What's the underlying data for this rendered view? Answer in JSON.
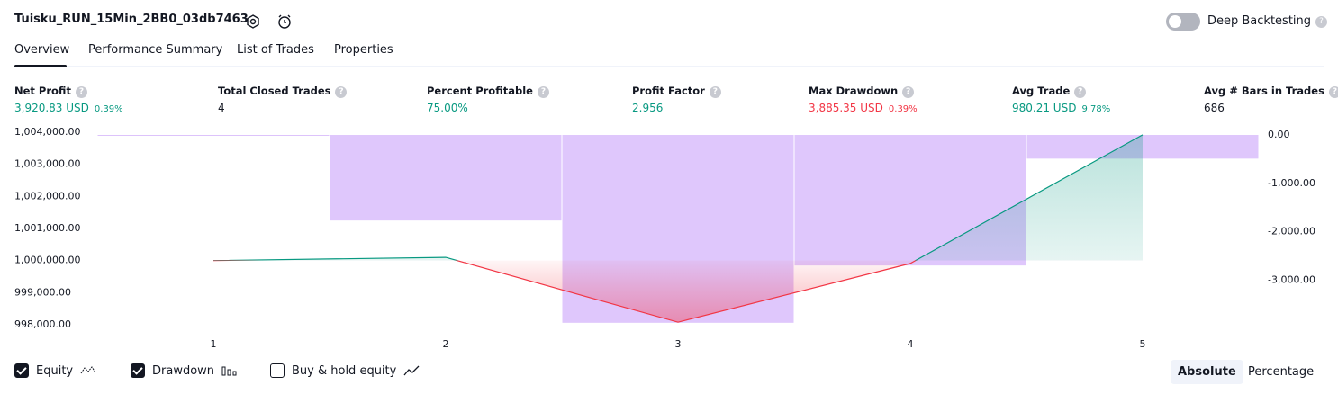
{
  "header": {
    "strategy_name": "Tuisku_RUN_15Min_2BB0_03db7463",
    "deep_backtesting": "Deep Backtesting"
  },
  "tabs": [
    "Overview",
    "Performance Summary",
    "List of Trades",
    "Properties"
  ],
  "stats": [
    {
      "label": "Net Profit",
      "value": "3,920.83 USD",
      "percent": "0.39%"
    },
    {
      "label": "Total Closed Trades",
      "value": "4"
    },
    {
      "label": "Percent Profitable",
      "value": "75.00%"
    },
    {
      "label": "Profit Factor",
      "value": "2.956"
    },
    {
      "label": "Max Drawdown",
      "value": "3,885.35 USD",
      "percent": "0.39%"
    },
    {
      "label": "Avg Trade",
      "value": "980.21 USD",
      "percent": "9.78%"
    },
    {
      "label": "Avg # Bars in Trades",
      "value": "686"
    }
  ],
  "chart_data": {
    "type": "line",
    "categories": [
      "1",
      "2",
      "3",
      "4",
      "5"
    ],
    "series": [
      {
        "name": "Equity",
        "color": "#089981",
        "negative_color": "#f23645",
        "values": [
          1000000,
          1000100,
          998080,
          999910,
          1003920
        ]
      },
      {
        "name": "Drawdown",
        "type": "bar",
        "axis": "y2",
        "color": "#d9bdfb",
        "values": [
          0,
          -1770,
          -3885.35,
          -2700,
          -490
        ]
      }
    ],
    "ylim": [
      998000,
      1004000
    ],
    "yticks": [
      {
        "value": 1004000,
        "label": "1,004,000.00"
      },
      {
        "value": 1003000,
        "label": "1,003,000.00"
      },
      {
        "value": 1002000,
        "label": "1,002,000.00"
      },
      {
        "value": 1001000,
        "label": "1,001,000.00"
      },
      {
        "value": 1000000,
        "label": "1,000,000.00"
      },
      {
        "value": 999000,
        "label": "999,000.00"
      },
      {
        "value": 998000,
        "label": "998,000.00"
      }
    ],
    "y2lim": [
      -4000,
      0
    ],
    "y2ticks": [
      {
        "value": 0,
        "label": "0.00"
      },
      {
        "value": -1000,
        "label": "-1,000.00"
      },
      {
        "value": -2000,
        "label": "-2,000.00"
      },
      {
        "value": -3000,
        "label": "-3,000.00"
      }
    ]
  },
  "controls": {
    "toggles": [
      {
        "label": "Equity",
        "checked": true
      },
      {
        "label": "Drawdown",
        "checked": true
      },
      {
        "label": "Buy & hold equity",
        "checked": false
      }
    ],
    "modes": [
      "Absolute",
      "Percentage"
    ]
  }
}
